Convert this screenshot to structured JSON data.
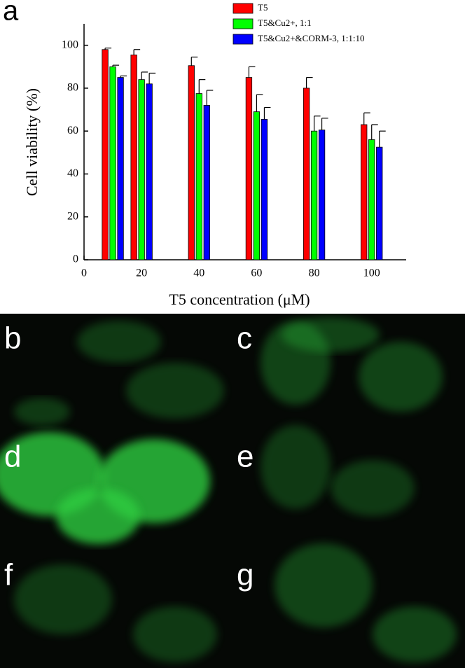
{
  "panel_label": "a",
  "chart_data": {
    "type": "bar",
    "xlabel": "T5 concentration (μM)",
    "ylabel": "Cell viability (%)",
    "x": [
      10,
      20,
      40,
      60,
      80,
      100
    ],
    "series": [
      {
        "name": "T5",
        "color": "#ff0000",
        "values": [
          98,
          95.5,
          90.5,
          85,
          80,
          63
        ],
        "errors": [
          0.7,
          2.5,
          4,
          5,
          5,
          5.5
        ]
      },
      {
        "name": "T5&Cu2+, 1:1",
        "color": "#00ff00",
        "values": [
          90,
          84,
          77.5,
          69,
          60,
          56
        ],
        "errors": [
          0.7,
          3.5,
          6.5,
          8,
          7,
          7
        ]
      },
      {
        "name": "T5&Cu2+&CORM-3, 1:1:10",
        "color": "#0000ff",
        "values": [
          85,
          82,
          72,
          65.5,
          60.5,
          52.5
        ],
        "errors": [
          0.7,
          5,
          7,
          5.5,
          5.5,
          7.5
        ]
      }
    ],
    "xlim": [
      0,
      112
    ],
    "ylim": [
      0,
      110
    ],
    "xticks": [
      0,
      20,
      40,
      60,
      80,
      100
    ],
    "yticks": [
      0,
      20,
      40,
      60,
      80,
      100
    ]
  },
  "panels": [
    "b",
    "c",
    "d",
    "e",
    "f",
    "g"
  ]
}
